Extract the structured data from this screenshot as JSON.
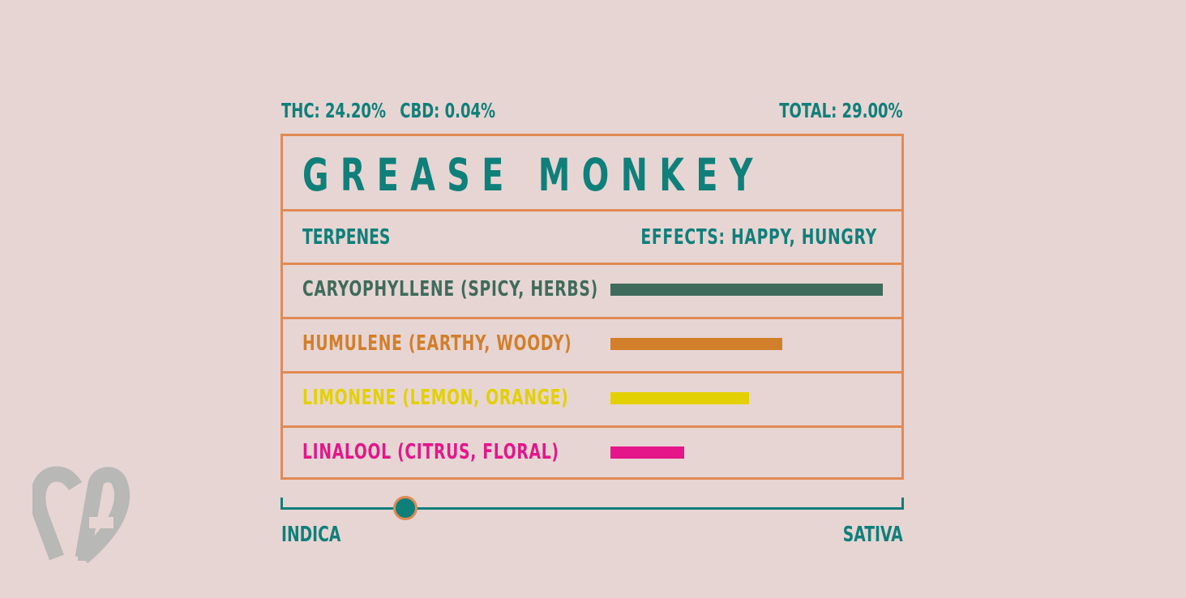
{
  "colors": {
    "background": "#e7d5d3",
    "teal": "#0f7f7a",
    "border_orange": "#e18a54",
    "caryophyllene": "#3f6b5c",
    "humulene": "#d27f2b",
    "limonene": "#e3d000",
    "linalool": "#e4168a",
    "logo_gray": "#b8b8b6"
  },
  "stats": {
    "thc": "THC: 24.20%",
    "cbd": "CBD: 0.04%",
    "total": "TOTAL: 29.00%"
  },
  "strain": {
    "name": "GREASE MONKEY"
  },
  "header": {
    "terpenes_label": "TERPENES",
    "effects_label": "EFFECTS: HAPPY, HUNGRY"
  },
  "terpenes": [
    {
      "label": "CARYOPHYLLENE (SPICY, HERBS)",
      "level": 1.0,
      "color": "#3f6b5c"
    },
    {
      "label": "HUMULENE (EARTHY, WOODY)",
      "level": 0.63,
      "color": "#d27f2b"
    },
    {
      "label": "LIMONENE (LEMON, ORANGE)",
      "level": 0.51,
      "color": "#e3d000"
    },
    {
      "label": "LINALOOL (CITRUS, FLORAL)",
      "level": 0.27,
      "color": "#e4168a"
    }
  ],
  "spectrum": {
    "left_label": "INDICA",
    "right_label": "SATIVA",
    "position": 0.2
  },
  "logo": {
    "icon": "ca-heart-logo-icon",
    "text": "CA"
  }
}
